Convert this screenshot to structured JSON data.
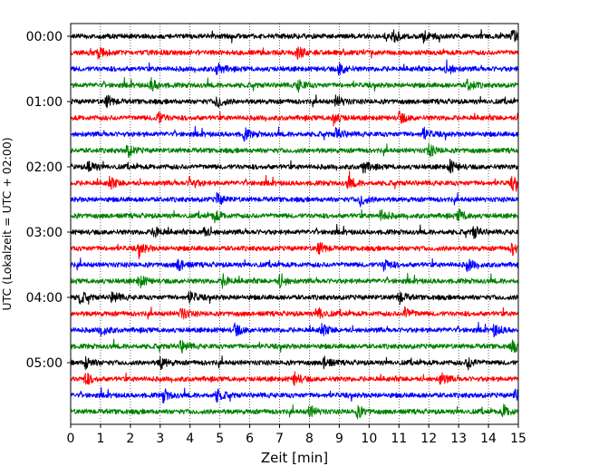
{
  "chart_data": {
    "type": "line",
    "title": "",
    "xlabel": "Zeit  [min]",
    "ylabel": "UTC (Lokalzeit = UTC + 02:00)",
    "xlim": [
      0,
      15
    ],
    "x_ticks": [
      "0",
      "1",
      "2",
      "3",
      "4",
      "5",
      "6",
      "7",
      "8",
      "9",
      "10",
      "11",
      "12",
      "13",
      "14",
      "15"
    ],
    "y_ticks": [
      "00:00",
      "01:00",
      "02:00",
      "03:00",
      "04:00",
      "05:00"
    ],
    "grid": "vertical dotted lines at each minute",
    "legend": "none",
    "trace_interval_minutes": 15,
    "colors": [
      "#000000",
      "#ff0000",
      "#0000ff",
      "#008000"
    ],
    "traces": [
      {
        "start": "00:00",
        "color": "#000000",
        "events_min": [
          10.8,
          11.8,
          14.8
        ]
      },
      {
        "start": "00:15",
        "color": "#ff0000",
        "events_min": [
          0.9,
          7.6
        ]
      },
      {
        "start": "00:30",
        "color": "#0000ff",
        "events_min": [
          4.9,
          9.0,
          12.6
        ]
      },
      {
        "start": "00:45",
        "color": "#008000",
        "events_min": [
          2.7,
          7.6,
          13.3
        ]
      },
      {
        "start": "01:00",
        "color": "#000000",
        "events_min": [
          1.2,
          4.9,
          8.9
        ]
      },
      {
        "start": "01:15",
        "color": "#ff0000",
        "events_min": [
          2.9,
          8.8,
          11.0
        ]
      },
      {
        "start": "01:30",
        "color": "#0000ff",
        "events_min": [
          5.8,
          8.9,
          11.8
        ]
      },
      {
        "start": "01:45",
        "color": "#008000",
        "events_min": [
          1.9,
          12.0
        ]
      },
      {
        "start": "02:00",
        "color": "#000000",
        "events_min": [
          0.6,
          9.8,
          12.7
        ]
      },
      {
        "start": "02:15",
        "color": "#ff0000",
        "events_min": [
          1.3,
          4.0,
          9.3,
          14.8
        ]
      },
      {
        "start": "02:30",
        "color": "#0000ff",
        "events_min": [
          4.9,
          9.7
        ]
      },
      {
        "start": "02:45",
        "color": "#008000",
        "events_min": [
          4.8,
          10.4,
          13.0
        ]
      },
      {
        "start": "03:00",
        "color": "#000000",
        "events_min": [
          2.8,
          4.4,
          13.5
        ]
      },
      {
        "start": "03:15",
        "color": "#ff0000",
        "events_min": [
          2.3,
          8.3,
          14.8
        ]
      },
      {
        "start": "03:30",
        "color": "#0000ff",
        "events_min": [
          3.6,
          10.5,
          13.3
        ]
      },
      {
        "start": "03:45",
        "color": "#008000",
        "events_min": [
          2.3,
          5.1,
          7.0
        ]
      },
      {
        "start": "04:00",
        "color": "#000000",
        "events_min": [
          0.3,
          1.4,
          4.0,
          11.0
        ]
      },
      {
        "start": "04:15",
        "color": "#ff0000",
        "events_min": [
          3.7,
          8.3,
          11.2
        ]
      },
      {
        "start": "04:30",
        "color": "#0000ff",
        "events_min": [
          1.0,
          5.5,
          8.4,
          14.2
        ]
      },
      {
        "start": "04:45",
        "color": "#008000",
        "events_min": [
          3.7,
          14.8
        ]
      },
      {
        "start": "05:00",
        "color": "#000000",
        "events_min": [
          0.5,
          3.0,
          8.5,
          13.3
        ]
      },
      {
        "start": "05:15",
        "color": "#ff0000",
        "events_min": [
          0.5,
          7.5,
          12.4
        ]
      },
      {
        "start": "05:30",
        "color": "#0000ff",
        "events_min": [
          3.1,
          4.9,
          14.9
        ]
      },
      {
        "start": "05:45",
        "color": "#008000",
        "events_min": [
          8.0,
          9.6,
          14.5
        ]
      }
    ]
  }
}
